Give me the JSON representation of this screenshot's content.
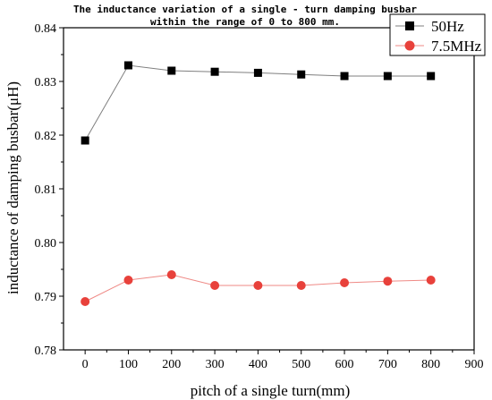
{
  "chart_data": {
    "type": "line",
    "title_lines": [
      "The inductance variation of a single - turn damping busbar",
      "within the range of 0 to 800 mm."
    ],
    "xlabel": "pitch of a single turn(mm)",
    "ylabel": "inductance of damping busbar(μH)",
    "xlim": [
      -50,
      900
    ],
    "ylim": [
      0.78,
      0.84
    ],
    "x_ticks": [
      0,
      100,
      200,
      300,
      400,
      500,
      600,
      700,
      800,
      900
    ],
    "y_ticks": [
      0.78,
      0.79,
      0.8,
      0.81,
      0.82,
      0.83,
      0.84
    ],
    "y_tick_labels": [
      "0.78",
      "0.79",
      "0.80",
      "0.81",
      "0.82",
      "0.83",
      "0.84"
    ],
    "legend_position": "top-right",
    "series": [
      {
        "name": "50Hz",
        "marker": "square",
        "marker_color": "#000000",
        "line_color": "#7f7f7f",
        "x": [
          0,
          100,
          200,
          300,
          400,
          500,
          600,
          700,
          800
        ],
        "y": [
          0.819,
          0.833,
          0.832,
          0.8318,
          0.8316,
          0.8313,
          0.831,
          0.831,
          0.831
        ]
      },
      {
        "name": "7.5MHz",
        "marker": "circle",
        "marker_color": "#e8413b",
        "line_color": "#ef8a86",
        "x": [
          0,
          100,
          200,
          300,
          400,
          500,
          600,
          700,
          800
        ],
        "y": [
          0.789,
          0.793,
          0.794,
          0.792,
          0.792,
          0.792,
          0.7925,
          0.7928,
          0.793
        ]
      }
    ]
  }
}
